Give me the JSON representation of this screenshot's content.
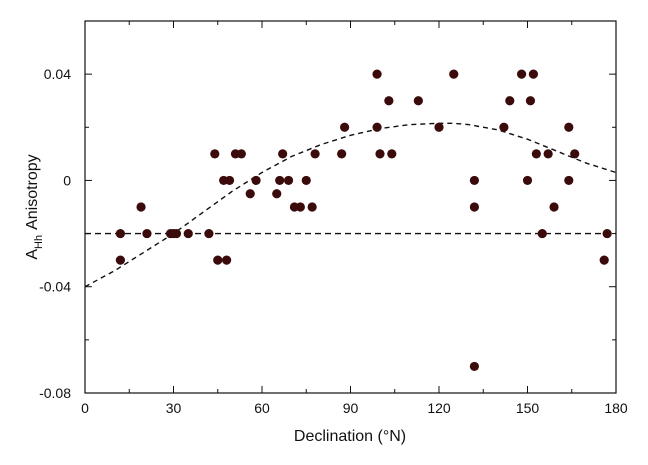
{
  "chart_data": {
    "type": "scatter",
    "xlabel": "Declination (°N)",
    "ylabel": {
      "main": "A",
      "sub": "Hh",
      "suffix": "Anisotropy"
    },
    "xlim": [
      0,
      180
    ],
    "ylim": [
      -0.08,
      0.06
    ],
    "xticks": [
      0,
      30,
      60,
      90,
      120,
      150,
      180
    ],
    "xtick_labels": [
      "0",
      "30",
      "60",
      "90",
      "120",
      "150",
      "180"
    ],
    "yticks": [
      -0.08,
      -0.04,
      0,
      0.04
    ],
    "ytick_labels": [
      "-0.08",
      "-0.04",
      "0",
      "0.04"
    ],
    "grid": false,
    "marker_color": "#3b0a0a",
    "line_color": "#111111",
    "points": [
      {
        "x": 12,
        "y": -0.02
      },
      {
        "x": 12,
        "y": -0.03
      },
      {
        "x": 19,
        "y": -0.01
      },
      {
        "x": 21,
        "y": -0.02
      },
      {
        "x": 29,
        "y": -0.02
      },
      {
        "x": 30,
        "y": -0.02
      },
      {
        "x": 31,
        "y": -0.02
      },
      {
        "x": 35,
        "y": -0.02
      },
      {
        "x": 42,
        "y": -0.02
      },
      {
        "x": 44,
        "y": 0.01
      },
      {
        "x": 45,
        "y": -0.03
      },
      {
        "x": 47,
        "y": 0.0
      },
      {
        "x": 48,
        "y": -0.03
      },
      {
        "x": 49,
        "y": 0.0
      },
      {
        "x": 51,
        "y": 0.01
      },
      {
        "x": 53,
        "y": 0.01
      },
      {
        "x": 56,
        "y": -0.005
      },
      {
        "x": 58,
        "y": 0.0
      },
      {
        "x": 65,
        "y": -0.005
      },
      {
        "x": 66,
        "y": 0.0
      },
      {
        "x": 67,
        "y": 0.01
      },
      {
        "x": 69,
        "y": 0.0
      },
      {
        "x": 71,
        "y": -0.01
      },
      {
        "x": 73,
        "y": -0.01
      },
      {
        "x": 75,
        "y": 0.0
      },
      {
        "x": 77,
        "y": -0.01
      },
      {
        "x": 78,
        "y": 0.01
      },
      {
        "x": 87,
        "y": 0.01
      },
      {
        "x": 88,
        "y": 0.02
      },
      {
        "x": 99,
        "y": 0.04
      },
      {
        "x": 99,
        "y": 0.02
      },
      {
        "x": 100,
        "y": 0.01
      },
      {
        "x": 103,
        "y": 0.03
      },
      {
        "x": 104,
        "y": 0.01
      },
      {
        "x": 113,
        "y": 0.03
      },
      {
        "x": 120,
        "y": 0.02
      },
      {
        "x": 125,
        "y": 0.04
      },
      {
        "x": 132,
        "y": 0.0
      },
      {
        "x": 132,
        "y": -0.01
      },
      {
        "x": 132,
        "y": -0.07
      },
      {
        "x": 142,
        "y": 0.02
      },
      {
        "x": 144,
        "y": 0.03
      },
      {
        "x": 148,
        "y": 0.04
      },
      {
        "x": 150,
        "y": 0.0
      },
      {
        "x": 151,
        "y": 0.03
      },
      {
        "x": 152,
        "y": 0.04
      },
      {
        "x": 153,
        "y": 0.01
      },
      {
        "x": 155,
        "y": -0.02
      },
      {
        "x": 157,
        "y": 0.01
      },
      {
        "x": 159,
        "y": -0.01
      },
      {
        "x": 164,
        "y": 0.0
      },
      {
        "x": 164,
        "y": 0.02
      },
      {
        "x": 166,
        "y": 0.01
      },
      {
        "x": 176,
        "y": -0.03
      },
      {
        "x": 177,
        "y": -0.02
      }
    ],
    "reference_lines": [
      {
        "kind": "horizontal",
        "y": -0.02,
        "style": "dashed"
      }
    ],
    "fit_curve": {
      "style": "dashed",
      "x": [
        0,
        10,
        20,
        30,
        40,
        50,
        60,
        70,
        80,
        90,
        100,
        110,
        120,
        125,
        130,
        140,
        150,
        160,
        170,
        180
      ],
      "y": [
        -0.04,
        -0.034,
        -0.027,
        -0.02,
        -0.012,
        -0.004,
        0.003,
        0.009,
        0.0135,
        0.017,
        0.0195,
        0.021,
        0.0215,
        0.0215,
        0.021,
        0.019,
        0.0155,
        0.011,
        0.0065,
        0.003
      ]
    }
  }
}
